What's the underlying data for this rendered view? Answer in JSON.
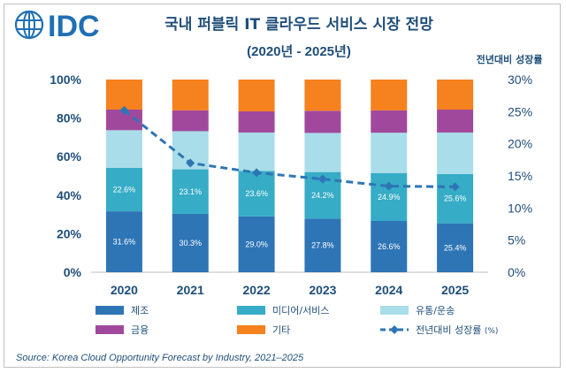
{
  "logo": {
    "text": "IDC"
  },
  "chart_data": {
    "type": "bar",
    "stacked": true,
    "title": "국내 퍼블릭 IT 클라우드 서비스 시장 전망",
    "subtitle": "(2020년 - 2025년)",
    "categories": [
      "2020",
      "2021",
      "2022",
      "2023",
      "2024",
      "2025"
    ],
    "ylim": [
      0,
      100
    ],
    "y_ticks": [
      "0%",
      "20%",
      "40%",
      "60%",
      "80%",
      "100%"
    ],
    "y2label": "전년대비 성장률",
    "y2lim": [
      0,
      30
    ],
    "y2_ticks": [
      "0%",
      "5%",
      "10%",
      "15%",
      "20%",
      "25%",
      "30%"
    ],
    "series": [
      {
        "name": "제조",
        "color": "#2e75b6",
        "values": [
          31.6,
          30.3,
          29.0,
          27.8,
          26.6,
          25.4
        ],
        "labels": [
          "31.6%",
          "30.3%",
          "29.0%",
          "27.8%",
          "26.6%",
          "25.4%"
        ]
      },
      {
        "name": "미디어/서비스",
        "color": "#36acc6",
        "values": [
          22.6,
          23.1,
          23.6,
          24.2,
          24.9,
          25.6
        ],
        "labels": [
          "22.6%",
          "23.1%",
          "23.6%",
          "24.2%",
          "24.9%",
          "25.6%"
        ]
      },
      {
        "name": "유통/운송",
        "color": "#a9dde9",
        "values": [
          19.5,
          19.8,
          19.9,
          20.3,
          20.9,
          21.5
        ]
      },
      {
        "name": "금융",
        "color": "#a0499c",
        "values": [
          10.7,
          10.8,
          11.0,
          11.5,
          11.6,
          11.9
        ]
      },
      {
        "name": "기타",
        "color": "#f5811f",
        "values": [
          15.6,
          16.0,
          16.5,
          16.2,
          16.0,
          15.6
        ]
      }
    ],
    "line": {
      "name": "전년대비 성장률",
      "unit": "(%)",
      "color": "#2e75b6",
      "axis": "right",
      "values": [
        25.2,
        17.0,
        15.5,
        14.5,
        13.4,
        13.3
      ]
    },
    "source": "Source: Korea Cloud Opportunity Forecast by Industry, 2021–2025"
  }
}
